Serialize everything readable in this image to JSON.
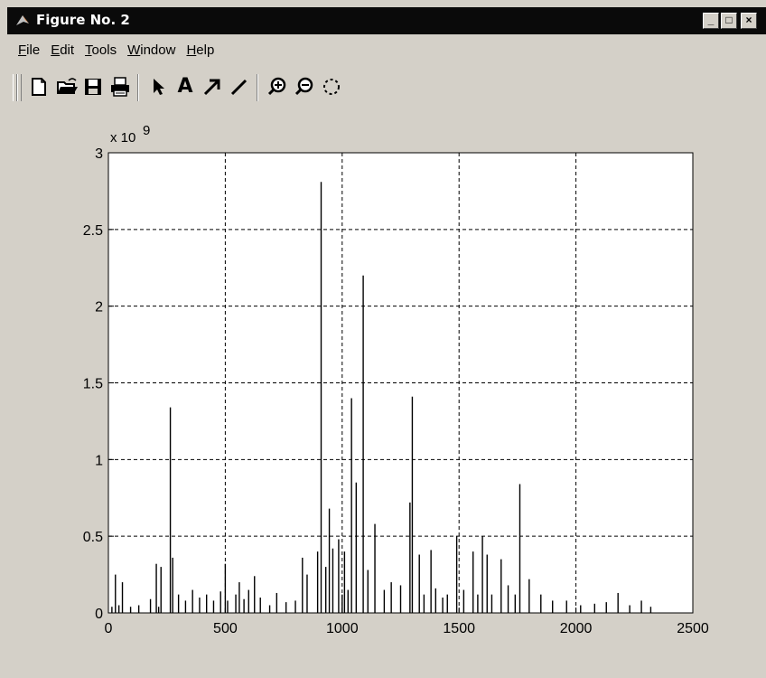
{
  "window": {
    "title": "Figure No. 2",
    "minimize_glyph": "_",
    "maximize_glyph": "□",
    "close_glyph": "×"
  },
  "menu": [
    {
      "label": "File",
      "underline": "F",
      "rest": "ile"
    },
    {
      "label": "Edit",
      "underline": "E",
      "rest": "dit"
    },
    {
      "label": "Tools",
      "underline": "T",
      "rest": "ools"
    },
    {
      "label": "Window",
      "underline": "W",
      "rest": "indow"
    },
    {
      "label": "Help",
      "underline": "H",
      "rest": "elp"
    }
  ],
  "toolbar": {
    "buttons": [
      "new-file-icon",
      "open-folder-icon",
      "save-icon",
      "print-icon",
      "arrow-pointer-icon",
      "text-icon",
      "arrow-icon",
      "line-icon",
      "zoom-in-icon",
      "zoom-out-icon",
      "rotate-icon"
    ],
    "text_glyph": "A"
  },
  "chart_data": {
    "type": "bar",
    "title": "",
    "xlabel": "",
    "ylabel": "",
    "xlim": [
      0,
      2500
    ],
    "ylim": [
      0,
      3
    ],
    "y_exponent_label": "x 10",
    "y_exponent_power": "9",
    "x_ticks": [
      "0",
      "500",
      "1000",
      "1500",
      "2000",
      "2500"
    ],
    "x_tick_values": [
      0,
      500,
      1000,
      1500,
      2000,
      2500
    ],
    "y_ticks": [
      "0",
      "0.5",
      "1",
      "1.5",
      "2",
      "2.5",
      "3"
    ],
    "y_tick_values": [
      0,
      0.5,
      1,
      1.5,
      2,
      2.5,
      3
    ],
    "grid": true,
    "grid_style": "dashed",
    "line_color": "#000000",
    "series": [
      {
        "x": [
          15,
          30,
          45,
          60,
          95,
          130,
          180,
          205,
          215,
          225,
          265,
          275,
          300,
          330,
          360,
          390,
          420,
          450,
          480,
          500,
          510,
          545,
          560,
          580,
          600,
          625,
          650,
          690,
          720,
          760,
          800,
          830,
          850,
          895,
          910,
          930,
          945,
          960,
          985,
          1000,
          1010,
          1025,
          1040,
          1060,
          1090,
          1110,
          1140,
          1180,
          1210,
          1250,
          1290,
          1300,
          1330,
          1350,
          1380,
          1400,
          1430,
          1450,
          1490,
          1520,
          1560,
          1580,
          1600,
          1620,
          1640,
          1680,
          1710,
          1740,
          1760,
          1800,
          1850,
          1900,
          1960,
          2020,
          2080,
          2130,
          2180,
          2230,
          2280,
          2320
        ],
        "y": [
          0.04,
          0.25,
          0.05,
          0.2,
          0.04,
          0.05,
          0.09,
          0.32,
          0.04,
          0.3,
          1.34,
          0.36,
          0.12,
          0.08,
          0.15,
          0.1,
          0.12,
          0.08,
          0.14,
          0.32,
          0.08,
          0.12,
          0.2,
          0.09,
          0.15,
          0.24,
          0.1,
          0.05,
          0.13,
          0.07,
          0.08,
          0.36,
          0.25,
          0.4,
          2.81,
          0.3,
          0.68,
          0.42,
          0.48,
          0.12,
          0.4,
          0.15,
          1.4,
          0.85,
          2.2,
          0.28,
          0.58,
          0.15,
          0.2,
          0.18,
          0.72,
          1.41,
          0.38,
          0.12,
          0.41,
          0.16,
          0.1,
          0.12,
          0.5,
          0.15,
          0.4,
          0.12,
          0.5,
          0.38,
          0.12,
          0.35,
          0.18,
          0.12,
          0.84,
          0.22,
          0.12,
          0.08,
          0.08,
          0.05,
          0.06,
          0.07,
          0.13,
          0.05,
          0.08,
          0.04
        ]
      }
    ]
  }
}
